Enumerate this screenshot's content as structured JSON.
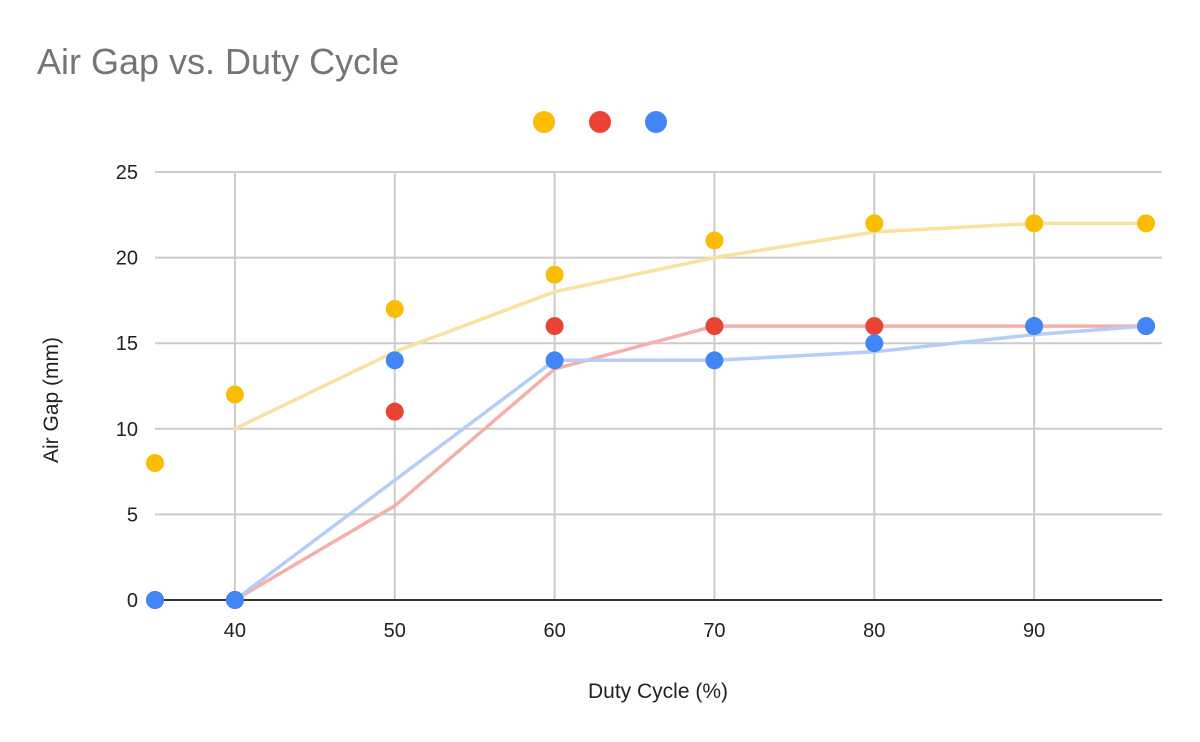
{
  "chart_data": {
    "type": "scatter",
    "title": "Air Gap vs. Duty Cycle",
    "xlabel": "Duty Cycle (%)",
    "ylabel": "Air Gap (mm)",
    "xlim": [
      35,
      98
    ],
    "ylim": [
      0,
      25
    ],
    "x_ticks": [
      40,
      50,
      60,
      70,
      80,
      90
    ],
    "y_ticks": [
      0,
      5,
      10,
      15,
      20,
      25
    ],
    "grid": true,
    "legend_position": "top",
    "series": [
      {
        "color": "#fbbc04",
        "trend_color": "#f8e2a0",
        "points": [
          [
            35,
            8
          ],
          [
            40,
            12
          ],
          [
            50,
            17
          ],
          [
            60,
            19
          ],
          [
            70,
            21
          ],
          [
            80,
            22
          ],
          [
            90,
            22
          ],
          [
            97,
            22
          ]
        ],
        "trendline": [
          [
            40,
            10
          ],
          [
            50,
            14.5
          ],
          [
            60,
            18
          ],
          [
            70,
            20
          ],
          [
            80,
            21.5
          ],
          [
            90,
            22
          ],
          [
            97,
            22
          ]
        ]
      },
      {
        "color": "#ea4335",
        "trend_color": "#f4b0ab",
        "points": [
          [
            35,
            0
          ],
          [
            40,
            0
          ],
          [
            50,
            11
          ],
          [
            60,
            16
          ],
          [
            70,
            16
          ],
          [
            80,
            16
          ],
          [
            90,
            16
          ],
          [
            97,
            16
          ]
        ],
        "trendline": [
          [
            40,
            0
          ],
          [
            50,
            5.5
          ],
          [
            60,
            13.5
          ],
          [
            70,
            16
          ],
          [
            80,
            16
          ],
          [
            90,
            16
          ],
          [
            97,
            16
          ]
        ]
      },
      {
        "color": "#4285f4",
        "trend_color": "#b5cdf7",
        "points": [
          [
            35,
            0
          ],
          [
            40,
            0
          ],
          [
            50,
            14
          ],
          [
            60,
            14
          ],
          [
            70,
            14
          ],
          [
            80,
            15
          ],
          [
            90,
            16
          ],
          [
            97,
            16
          ]
        ],
        "trendline": [
          [
            40,
            0
          ],
          [
            50,
            7
          ],
          [
            60,
            14
          ],
          [
            70,
            14
          ],
          [
            80,
            14.5
          ],
          [
            90,
            15.5
          ],
          [
            97,
            16
          ]
        ]
      }
    ]
  }
}
